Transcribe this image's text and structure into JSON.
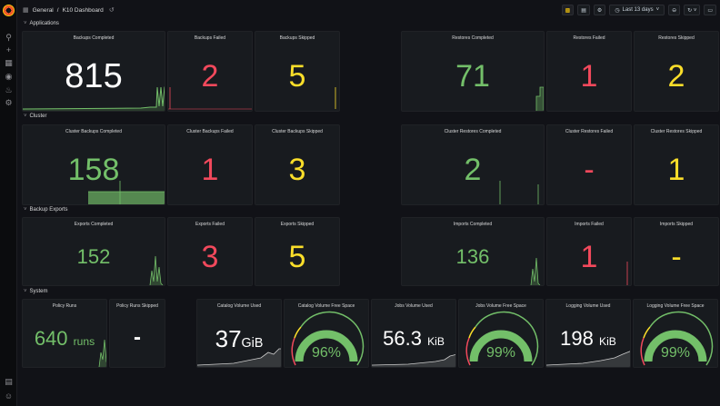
{
  "nav": {
    "breadcrumb_folder": "General",
    "separator": "/",
    "dashboard_title": "K10 Dashboard",
    "time_range": "Last 13 days",
    "buttons": [
      "add-panel",
      "save",
      "settings",
      "time-range",
      "zoom-out",
      "refresh",
      "tv-mode"
    ]
  },
  "sidemenu": {
    "icons": [
      "search-icon",
      "plus-icon",
      "dashboards-icon",
      "explore-icon",
      "alerting-icon",
      "configuration-icon",
      "help-icon",
      "user-icon"
    ]
  },
  "rows": {
    "applications": "Applications",
    "cluster": "Cluster",
    "backup_exports": "Backup Exports",
    "system": "System"
  },
  "panels": {
    "backups_completed": {
      "title": "Backups Completed",
      "value": "815"
    },
    "backups_failed": {
      "title": "Backups Failed",
      "value": "2"
    },
    "backups_skipped": {
      "title": "Backups Skipped",
      "value": "5"
    },
    "restores_completed": {
      "title": "Restores Completed",
      "value": "71"
    },
    "restores_failed": {
      "title": "Restores Failed",
      "value": "1"
    },
    "restores_skipped": {
      "title": "Restores Skipped",
      "value": "2"
    },
    "cluster_backups_completed": {
      "title": "Cluster Backups Completed",
      "value": "158"
    },
    "cluster_backups_failed": {
      "title": "Cluster Backups Failed",
      "value": "1"
    },
    "cluster_backups_skipped": {
      "title": "Cluster Backups Skipped",
      "value": "3"
    },
    "cluster_restores_completed": {
      "title": "Cluster Restores Completed",
      "value": "2"
    },
    "cluster_restores_failed": {
      "title": "Cluster Restores Failed",
      "value": "-"
    },
    "cluster_restores_skipped": {
      "title": "Cluster Restores Skipped",
      "value": "1"
    },
    "exports_completed": {
      "title": "Exports Completed",
      "value": "152"
    },
    "exports_failed": {
      "title": "Exports Failed",
      "value": "3"
    },
    "exports_skipped": {
      "title": "Exports Skipped",
      "value": "5"
    },
    "imports_completed": {
      "title": "Imports Completed",
      "value": "136"
    },
    "imports_failed": {
      "title": "Imports Failed",
      "value": "1"
    },
    "imports_skipped": {
      "title": "Imports Skipped",
      "value": "-"
    },
    "policy_runs": {
      "title": "Policy Runs",
      "value": "640",
      "unit": "runs"
    },
    "policy_runs_skipped": {
      "title": "Policy Runs Skipped",
      "value": "-"
    },
    "catalog_volume_used": {
      "title": "Catalog Volume Used",
      "value": "37",
      "unit": "GiB"
    },
    "catalog_volume_free": {
      "title": "Catalog Volume Free Space",
      "value": "96%",
      "percent": 96
    },
    "jobs_volume_used": {
      "title": "Jobs Volume Used",
      "value": "56.3",
      "unit": "KiB"
    },
    "jobs_volume_free": {
      "title": "Jobs Volume Free Space",
      "value": "99%",
      "percent": 99
    },
    "logging_volume_used": {
      "title": "Logging Volume Used",
      "value": "198",
      "unit": "KiB"
    },
    "logging_volume_free": {
      "title": "Logging Volume Free Space",
      "value": "99%",
      "percent": 99
    }
  },
  "colors": {
    "green": "#73bf69",
    "red": "#f2495c",
    "yellow": "#fade2a",
    "background": "#111217",
    "panel": "#181b1f"
  }
}
